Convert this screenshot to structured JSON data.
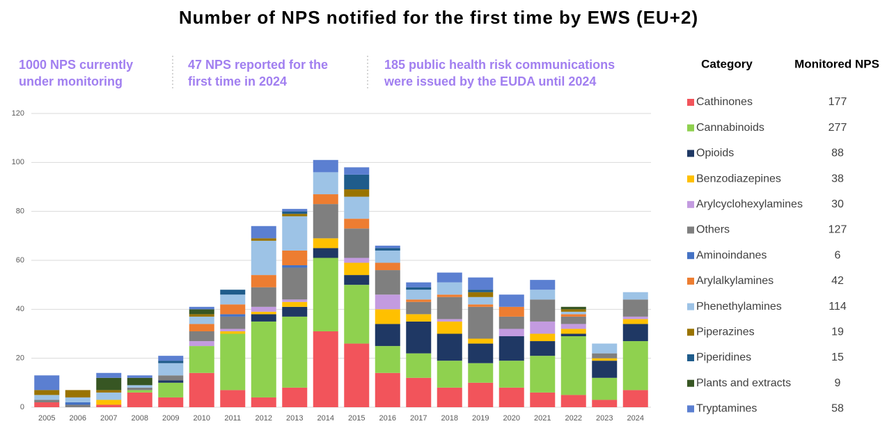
{
  "chart_data": {
    "type": "stacked_bar",
    "title": "Number of NPS notified for the first time by EWS (EU+2)",
    "annotations": [
      [
        "1000 NPS currently",
        "under monitoring"
      ],
      [
        "47 NPS reported for the",
        "first time in 2024"
      ],
      [
        "185 public health risk communications",
        "were issued by the EUDA until 2024"
      ]
    ],
    "legend_headers": [
      "Category",
      "Monitored NPS"
    ],
    "categories": [
      "2005",
      "2006",
      "2007",
      "2008",
      "2009",
      "2010",
      "2011",
      "2012",
      "2013",
      "2014",
      "2015",
      "2016",
      "2017",
      "2018",
      "2019",
      "2020",
      "2021",
      "2022",
      "2023",
      "2024"
    ],
    "ylim": [
      0,
      120
    ],
    "yticks": [
      0,
      20,
      40,
      60,
      80,
      100,
      120
    ],
    "grid": true,
    "series": [
      {
        "name": "Cathinones",
        "color": "#f2545b",
        "monitored": 177,
        "values": [
          2,
          0,
          1,
          6,
          4,
          14,
          7,
          4,
          8,
          31,
          26,
          14,
          12,
          8,
          10,
          8,
          6,
          5,
          3,
          7
        ]
      },
      {
        "name": "Cannabinoids",
        "color": "#8fd14f",
        "monitored": 277,
        "values": [
          0,
          0,
          0,
          1,
          6,
          11,
          23,
          31,
          29,
          30,
          24,
          11,
          10,
          11,
          8,
          11,
          15,
          24,
          9,
          20
        ]
      },
      {
        "name": "Opioids",
        "color": "#1f3864",
        "monitored": 88,
        "values": [
          0,
          0,
          0,
          0,
          1,
          0,
          0,
          3,
          4,
          4,
          4,
          9,
          13,
          11,
          8,
          10,
          6,
          1,
          7,
          7
        ]
      },
      {
        "name": "Benzodiazepines",
        "color": "#ffc000",
        "monitored": 38,
        "values": [
          0,
          0,
          2,
          0,
          0,
          0,
          1,
          1,
          2,
          4,
          5,
          6,
          3,
          5,
          2,
          0,
          3,
          2,
          1,
          2
        ]
      },
      {
        "name": "Arylcyclohexylamines",
        "color": "#c39be0",
        "monitored": 30,
        "values": [
          0,
          0,
          0,
          0,
          0,
          2,
          1,
          2,
          1,
          0,
          2,
          6,
          0,
          1,
          0,
          3,
          5,
          2,
          0,
          1
        ]
      },
      {
        "name": "Others",
        "color": "#7f7f7f",
        "monitored": 127,
        "values": [
          1,
          1,
          0,
          1,
          2,
          4,
          5,
          8,
          13,
          14,
          12,
          10,
          5,
          9,
          13,
          5,
          9,
          3,
          2,
          7
        ]
      },
      {
        "name": "Aminoindanes",
        "color": "#4472c4",
        "monitored": 6,
        "values": [
          0,
          1,
          0,
          0,
          0,
          0,
          1,
          0,
          1,
          0,
          0,
          0,
          0,
          0,
          0,
          0,
          0,
          0,
          0,
          0
        ]
      },
      {
        "name": "Arylalkylamines",
        "color": "#ed7d31",
        "monitored": 42,
        "values": [
          0,
          0,
          0,
          0,
          0,
          3,
          4,
          5,
          6,
          4,
          4,
          3,
          1,
          1,
          1,
          4,
          0,
          1,
          0,
          0
        ]
      },
      {
        "name": "Phenethylamines",
        "color": "#9dc3e6",
        "monitored": 114,
        "values": [
          2,
          2,
          3,
          1,
          5,
          3,
          4,
          14,
          14,
          9,
          9,
          5,
          4,
          5,
          3,
          0,
          4,
          1,
          4,
          3
        ]
      },
      {
        "name": "Piperazines",
        "color": "#997300",
        "monitored": 19,
        "values": [
          2,
          3,
          1,
          0,
          0,
          1,
          0,
          1,
          1,
          0,
          3,
          0,
          0,
          0,
          2,
          0,
          0,
          1,
          0,
          0
        ]
      },
      {
        "name": "Piperidines",
        "color": "#1f5c8b",
        "monitored": 15,
        "values": [
          0,
          0,
          0,
          0,
          1,
          0,
          2,
          0,
          1,
          0,
          6,
          1,
          1,
          0,
          1,
          0,
          0,
          0,
          0,
          0
        ]
      },
      {
        "name": "Plants and extracts",
        "color": "#375623",
        "monitored": 9,
        "values": [
          0,
          0,
          5,
          3,
          0,
          2,
          0,
          0,
          0,
          0,
          0,
          0,
          0,
          0,
          0,
          0,
          0,
          1,
          0,
          0
        ]
      },
      {
        "name": "Tryptamines",
        "color": "#5b7fd1",
        "monitored": 58,
        "values": [
          6,
          0,
          2,
          1,
          2,
          1,
          0,
          5,
          1,
          5,
          3,
          1,
          2,
          4,
          5,
          5,
          4,
          0,
          0,
          0
        ]
      }
    ]
  }
}
